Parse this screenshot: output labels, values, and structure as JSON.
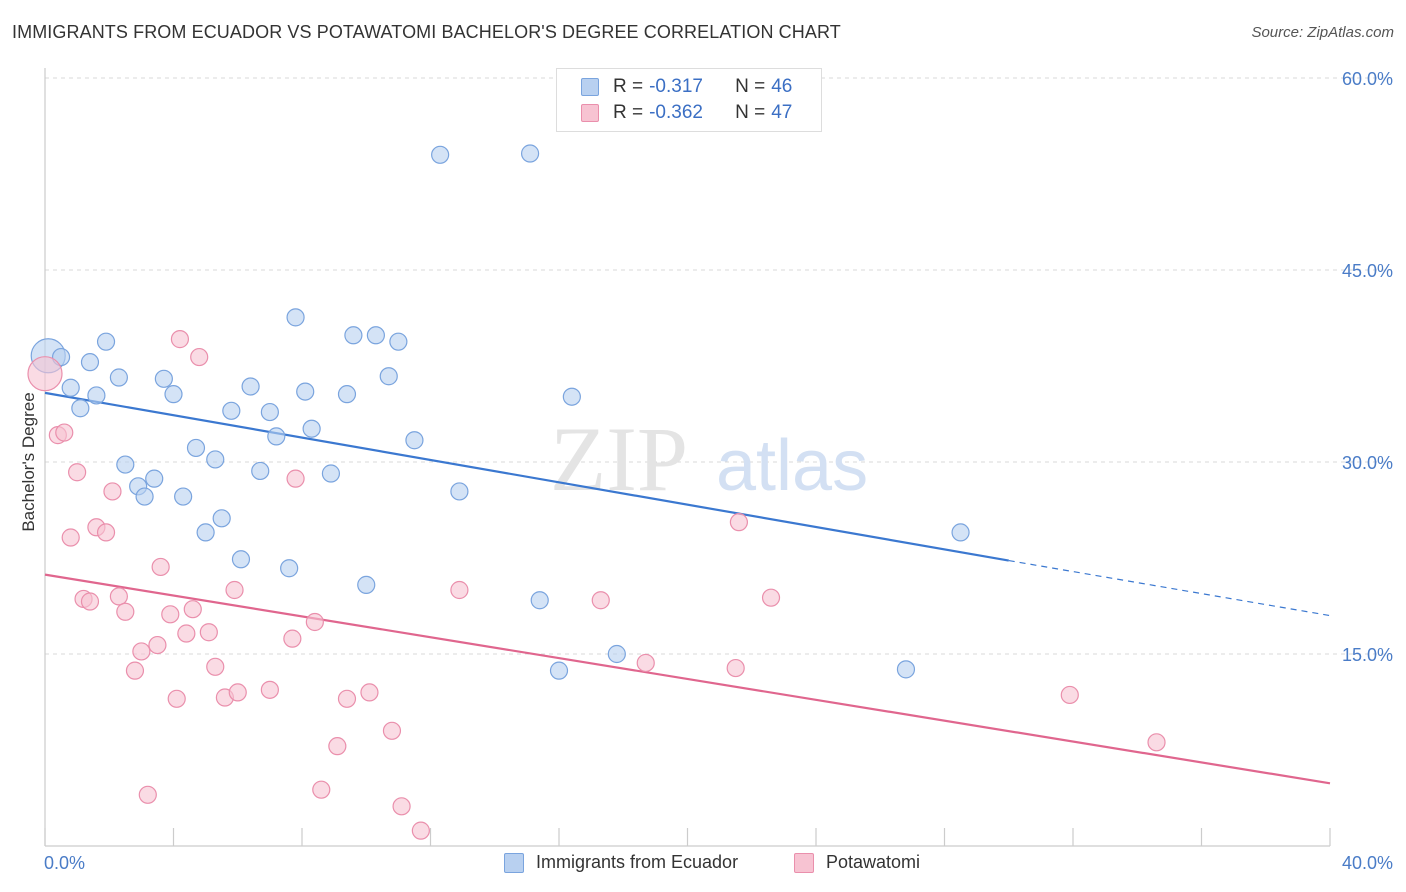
{
  "header": {
    "title": "IMMIGRANTS FROM ECUADOR VS POTAWATOMI BACHELOR'S DEGREE CORRELATION CHART",
    "source": "Source: ZipAtlas.com"
  },
  "watermark": {
    "zip": "ZIP",
    "atlas": "atlas"
  },
  "legend": {
    "rows": [
      {
        "r_label": "R =",
        "r_value": "-0.317",
        "n_label": "N =",
        "n_value": "46"
      },
      {
        "r_label": "R =",
        "r_value": "-0.362",
        "n_label": "N =",
        "n_value": "47"
      }
    ]
  },
  "bottom_legend": {
    "items": [
      {
        "label": "Immigrants from Ecuador"
      },
      {
        "label": "Potawatomi"
      }
    ]
  },
  "colors": {
    "blue_fill": "#b8d0f0",
    "blue_stroke": "#7aa4de",
    "blue_line": "#3b78d0",
    "pink_fill": "#f7c3d2",
    "pink_stroke": "#ea8fac",
    "pink_line": "#e0668e",
    "grid": "#d8d8d8",
    "tick_text": "#4a7cc7"
  },
  "chart_data": {
    "type": "scatter",
    "ylabel": "Bachelor's Degree",
    "xlim": [
      0,
      40
    ],
    "ylim": [
      0,
      60
    ],
    "x_tick_labels": [
      "0.0%",
      "40.0%"
    ],
    "y_ticks": [
      15,
      30,
      45,
      60
    ],
    "y_tick_labels": [
      "15.0%",
      "30.0%",
      "45.0%",
      "60.0%"
    ],
    "grid": "dashed horizontal",
    "legend_position": "top-center",
    "series": [
      {
        "name": "Immigrants from Ecuador",
        "color": "blue",
        "trend": {
          "x0": 0,
          "y0": 35.4,
          "x1": 30.0,
          "y1": 22.3,
          "dash_to_x": 40,
          "dash_to_y": 18.0
        },
        "points": [
          [
            0.1,
            38.3,
            "large"
          ],
          [
            0.5,
            38.2
          ],
          [
            0.8,
            35.8
          ],
          [
            1.1,
            34.2
          ],
          [
            1.4,
            37.8
          ],
          [
            1.6,
            35.2
          ],
          [
            1.9,
            39.4
          ],
          [
            2.3,
            36.6
          ],
          [
            2.5,
            29.8
          ],
          [
            2.9,
            28.1
          ],
          [
            3.1,
            27.3
          ],
          [
            3.4,
            28.7
          ],
          [
            3.7,
            36.5
          ],
          [
            4.0,
            35.3
          ],
          [
            4.3,
            27.3
          ],
          [
            4.7,
            31.1
          ],
          [
            5.0,
            24.5
          ],
          [
            5.3,
            30.2
          ],
          [
            5.5,
            25.6
          ],
          [
            5.8,
            34.0
          ],
          [
            6.1,
            22.4
          ],
          [
            6.4,
            35.9
          ],
          [
            6.7,
            29.3
          ],
          [
            7.0,
            33.9
          ],
          [
            7.2,
            32.0
          ],
          [
            7.6,
            21.7
          ],
          [
            7.8,
            41.3
          ],
          [
            8.1,
            35.5
          ],
          [
            8.3,
            32.6
          ],
          [
            8.9,
            29.1
          ],
          [
            9.4,
            35.3
          ],
          [
            9.6,
            39.9
          ],
          [
            10.0,
            20.4
          ],
          [
            10.3,
            39.9
          ],
          [
            10.7,
            36.7
          ],
          [
            11.0,
            39.4
          ],
          [
            11.5,
            31.7
          ],
          [
            12.3,
            54.0
          ],
          [
            12.9,
            27.7
          ],
          [
            15.1,
            54.1
          ],
          [
            15.4,
            19.2
          ],
          [
            16.0,
            13.7
          ],
          [
            16.4,
            35.1
          ],
          [
            17.8,
            15.0
          ],
          [
            26.8,
            13.8
          ],
          [
            28.5,
            24.5
          ]
        ]
      },
      {
        "name": "Potawatomi",
        "color": "pink",
        "trend": {
          "x0": 0,
          "y0": 21.2,
          "x1": 40,
          "y1": 4.9
        },
        "points": [
          [
            0.0,
            36.9,
            "large"
          ],
          [
            0.4,
            32.1
          ],
          [
            0.6,
            32.3
          ],
          [
            0.8,
            24.1
          ],
          [
            1.0,
            29.2
          ],
          [
            1.2,
            19.3
          ],
          [
            1.4,
            19.1
          ],
          [
            1.6,
            24.9
          ],
          [
            1.9,
            24.5
          ],
          [
            2.1,
            27.7
          ],
          [
            2.3,
            19.5
          ],
          [
            2.5,
            18.3
          ],
          [
            2.8,
            13.7
          ],
          [
            3.0,
            15.2
          ],
          [
            3.2,
            4.0
          ],
          [
            3.5,
            15.7
          ],
          [
            3.6,
            21.8
          ],
          [
            3.9,
            18.1
          ],
          [
            4.1,
            11.5
          ],
          [
            4.2,
            39.6
          ],
          [
            4.4,
            16.6
          ],
          [
            4.6,
            18.5
          ],
          [
            4.8,
            38.2
          ],
          [
            5.1,
            16.7
          ],
          [
            5.3,
            14.0
          ],
          [
            5.6,
            11.6
          ],
          [
            5.9,
            20.0
          ],
          [
            6.0,
            12.0
          ],
          [
            7.0,
            12.2
          ],
          [
            7.7,
            16.2
          ],
          [
            7.8,
            28.7
          ],
          [
            8.4,
            17.5
          ],
          [
            8.6,
            4.4
          ],
          [
            9.1,
            7.8
          ],
          [
            9.4,
            11.5
          ],
          [
            10.1,
            12.0
          ],
          [
            10.8,
            9.0
          ],
          [
            11.1,
            3.1
          ],
          [
            11.7,
            1.2
          ],
          [
            12.9,
            20.0
          ],
          [
            17.3,
            19.2
          ],
          [
            18.7,
            14.3
          ],
          [
            21.5,
            13.9
          ],
          [
            21.6,
            25.3
          ],
          [
            22.6,
            19.4
          ],
          [
            31.9,
            11.8
          ],
          [
            34.6,
            8.1
          ]
        ]
      }
    ]
  }
}
